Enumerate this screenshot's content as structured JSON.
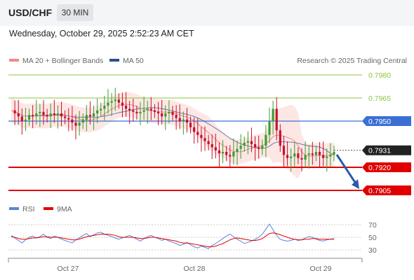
{
  "header": {
    "symbol": "USD/CHF",
    "timeframe": "30 MIN",
    "datetime": "Wednesday, October 29, 2025 2:52:23 AM CET"
  },
  "legend": {
    "ma20": "MA 20 + Bollinger Bands",
    "ma50": "MA 50",
    "credit": "Research © 2025 Trading Central",
    "rsi": "RSI",
    "ma9": "9MA"
  },
  "colors": {
    "ma20": "#f08a8a",
    "band_fill": "#fde3e1",
    "ma50": "#2e4d8c",
    "resistance": "#8cc63f",
    "support": "#e00000",
    "pivot": "#3b6fd4",
    "current": "#222222",
    "up_candle": "#3a9e2f",
    "down_candle": "#c8102e",
    "rsi": "#5b84d9",
    "rsi_ma": "#e00000",
    "arrow": "#2a5aa8"
  },
  "chart_data": [
    {
      "type": "candlestick",
      "title": "USD/CHF",
      "ylim": [
        0.7895,
        0.7985
      ],
      "x_ticks": [
        "Oct 27",
        "Oct 28",
        "Oct 29"
      ],
      "series": [
        {
          "name": "MA 20 + Bollinger Bands"
        },
        {
          "name": "MA 50"
        }
      ],
      "levels": [
        {
          "label": "0.7980",
          "value": 0.798,
          "kind": "resistance"
        },
        {
          "label": "0.7965",
          "value": 0.7965,
          "kind": "resistance"
        },
        {
          "label": "0.7950",
          "value": 0.795,
          "kind": "pivot"
        },
        {
          "label": "0.7931",
          "value": 0.7931,
          "kind": "current"
        },
        {
          "label": "0.7920",
          "value": 0.792,
          "kind": "support"
        },
        {
          "label": "0.7905",
          "value": 0.7905,
          "kind": "support"
        }
      ],
      "close_path": [
        0.7957,
        0.7955,
        0.7953,
        0.795,
        0.7951,
        0.7954,
        0.7953,
        0.7955,
        0.7956,
        0.7954,
        0.7953,
        0.7955,
        0.7954,
        0.7955,
        0.7953,
        0.7952,
        0.7951,
        0.7949,
        0.7947,
        0.7949,
        0.7951,
        0.7954,
        0.7953,
        0.7955,
        0.7957,
        0.7958,
        0.796,
        0.7962,
        0.7963,
        0.7964,
        0.7962,
        0.796,
        0.7958,
        0.7957,
        0.7956,
        0.7955,
        0.7956,
        0.7957,
        0.7958,
        0.7957,
        0.7956,
        0.7955,
        0.7953,
        0.7955,
        0.7956,
        0.7954,
        0.7952,
        0.795,
        0.7951,
        0.7949,
        0.7946,
        0.7943,
        0.7941,
        0.7939,
        0.7937,
        0.7935,
        0.7933,
        0.7931,
        0.7929,
        0.793,
        0.7928,
        0.7927,
        0.793,
        0.7932,
        0.7934,
        0.7936,
        0.7937,
        0.7935,
        0.7933,
        0.7932,
        0.7934,
        0.7941,
        0.795,
        0.7958,
        0.7944,
        0.7934,
        0.7928,
        0.7926,
        0.7927,
        0.7929,
        0.7926,
        0.7925,
        0.7928,
        0.7929,
        0.7928,
        0.793,
        0.7928,
        0.7926,
        0.7927,
        0.7928,
        0.793
      ]
    },
    {
      "type": "line",
      "title": "RSI",
      "ylim": [
        25,
        75
      ],
      "y_ticks": [
        70,
        50,
        30
      ],
      "series": [
        {
          "name": "RSI",
          "values": [
            53,
            49,
            45,
            41,
            46,
            50,
            52,
            49,
            51,
            55,
            50,
            48,
            52,
            50,
            47,
            45,
            43,
            41,
            46,
            49,
            53,
            56,
            51,
            54,
            57,
            58,
            55,
            53,
            51,
            49,
            47,
            49,
            51,
            53,
            50,
            47,
            44,
            48,
            51,
            53,
            50,
            48,
            45,
            47,
            44,
            42,
            40,
            37,
            39,
            42,
            38,
            35,
            33,
            36,
            34,
            32,
            37,
            40,
            44,
            48,
            52,
            55,
            51,
            47,
            44,
            40,
            42,
            44,
            47,
            50,
            55,
            63,
            71,
            62,
            53,
            47,
            45,
            44,
            45,
            47,
            45,
            46,
            49,
            51,
            50,
            47,
            45,
            44,
            46,
            47,
            48
          ]
        },
        {
          "name": "9MA",
          "values": [
            51,
            50,
            48,
            47,
            47,
            48,
            49,
            49,
            50,
            51,
            51,
            50,
            50,
            50,
            49,
            48,
            47,
            46,
            46,
            47,
            49,
            51,
            52,
            53,
            54,
            55,
            55,
            55,
            54,
            53,
            51,
            50,
            50,
            50,
            50,
            49,
            48,
            48,
            49,
            50,
            50,
            49,
            48,
            47,
            46,
            45,
            44,
            42,
            41,
            41,
            40,
            39,
            38,
            37,
            36,
            35,
            35,
            36,
            38,
            40,
            43,
            46,
            48,
            49,
            48,
            47,
            46,
            45,
            45,
            46,
            48,
            52,
            56,
            57,
            56,
            54,
            52,
            50,
            48,
            47,
            46,
            46,
            47,
            47,
            48,
            48,
            47,
            47,
            47,
            47,
            47
          ]
        }
      ]
    }
  ]
}
